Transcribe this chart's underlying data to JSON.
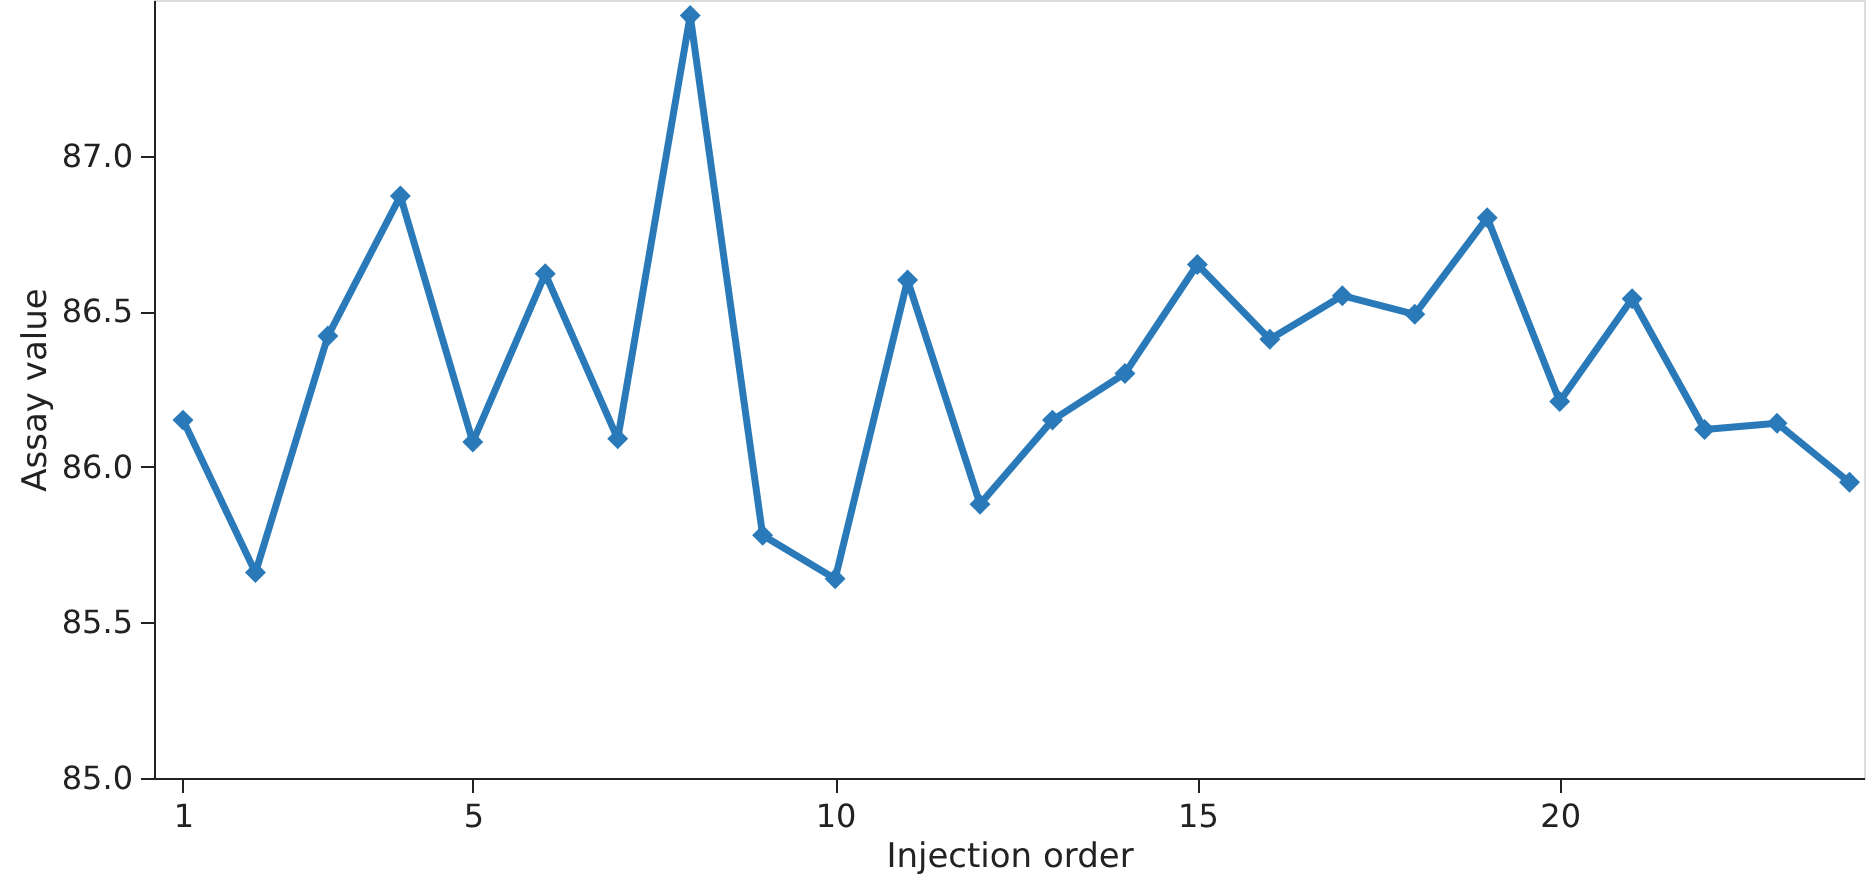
{
  "chart_data": {
    "type": "line",
    "xlabel": "Injection order",
    "ylabel": "Assay value",
    "x": [
      1,
      2,
      3,
      4,
      5,
      6,
      7,
      8,
      9,
      10,
      11,
      12,
      13,
      14,
      15,
      16,
      17,
      18,
      19,
      20,
      21,
      22,
      23,
      24
    ],
    "series": [
      {
        "color": "#2a7ab9",
        "values": [
          86.15,
          85.66,
          86.42,
          86.87,
          86.08,
          86.62,
          86.09,
          87.45,
          85.78,
          85.64,
          86.6,
          85.88,
          86.15,
          86.3,
          86.65,
          86.41,
          86.55,
          86.49,
          86.8,
          86.21,
          86.54,
          86.12,
          86.14,
          85.95
        ]
      }
    ],
    "xlim": [
      0.6,
      24.2
    ],
    "ylim": [
      85.0,
      87.5
    ],
    "xticks": [
      1,
      5,
      10,
      15,
      20
    ],
    "yticks": [
      {
        "value": 85.0,
        "label": "85.0"
      },
      {
        "value": 85.5,
        "label": "85.5"
      },
      {
        "value": 86.0,
        "label": "86.0"
      },
      {
        "value": 86.5,
        "label": "86.5"
      },
      {
        "value": 87.0,
        "label": "87.0"
      }
    ],
    "grid": false,
    "marker": "diamond",
    "line_style": "solid"
  }
}
